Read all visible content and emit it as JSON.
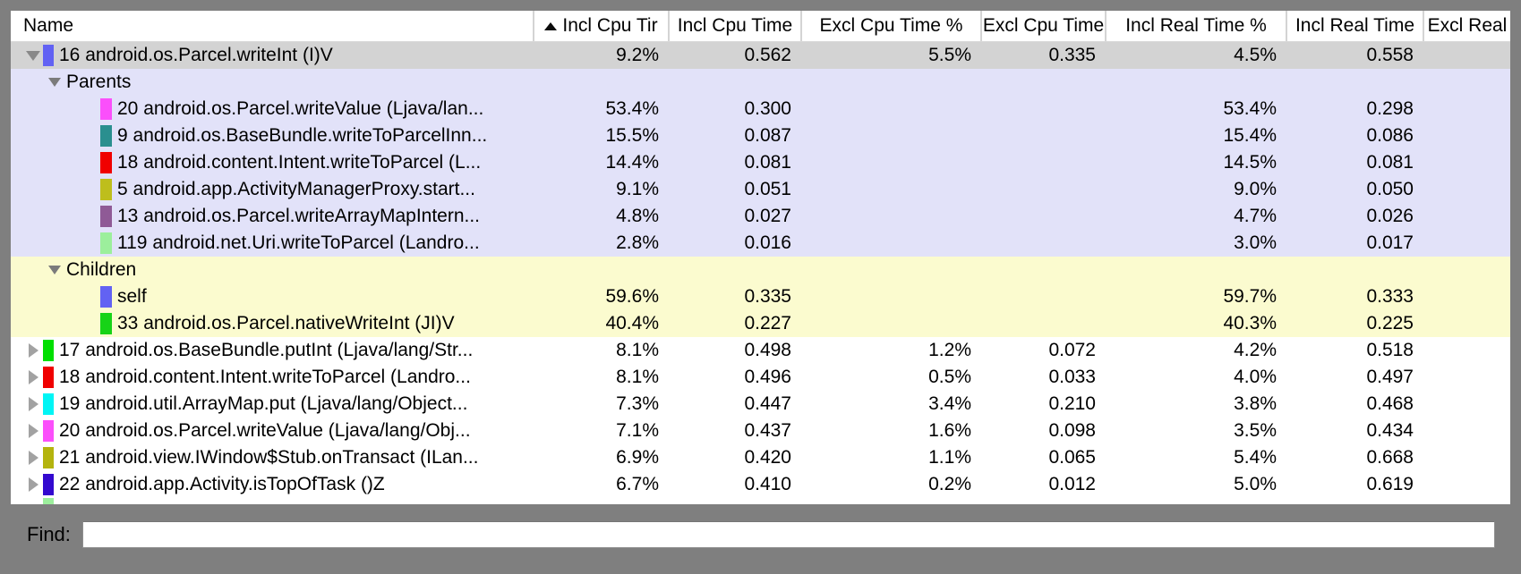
{
  "window": {
    "bg": "#7f7f7f"
  },
  "colors": {
    "selected_row": "#d3d3d3",
    "parents_section": "#e2e2f9",
    "children_section": "#fbfbcf",
    "row_default": "#ffffff"
  },
  "table": {
    "columns": [
      {
        "label": "Name",
        "align": "left"
      },
      {
        "label": "Incl Cpu Tir",
        "sorted": "asc"
      },
      {
        "label": "Incl Cpu Time"
      },
      {
        "label": "Excl Cpu Time %"
      },
      {
        "label": "Excl Cpu Time"
      },
      {
        "label": "Incl Real Time %"
      },
      {
        "label": "Incl Real Time"
      },
      {
        "label": "Excl Real"
      }
    ],
    "rows": [
      {
        "kind": "root",
        "section": "selected",
        "disclosure": "down",
        "swatch": "#6262f3",
        "name": "16 android.os.Parcel.writeInt (I)V",
        "values": [
          "9.2%",
          "0.562",
          "5.5%",
          "0.335",
          "4.5%",
          "0.558",
          ""
        ]
      },
      {
        "kind": "group",
        "section": "parents",
        "disclosure": "down",
        "swatch": null,
        "name": "Parents",
        "values": [
          "",
          "",
          "",
          "",
          "",
          "",
          ""
        ]
      },
      {
        "kind": "item",
        "section": "parents",
        "disclosure": null,
        "swatch": "#fb4ffb",
        "name": "20 android.os.Parcel.writeValue (Ljava/lan...",
        "values": [
          "53.4%",
          "0.300",
          "",
          "",
          "53.4%",
          "0.298",
          ""
        ]
      },
      {
        "kind": "item",
        "section": "parents",
        "disclosure": null,
        "swatch": "#2a8f8f",
        "name": "9 android.os.BaseBundle.writeToParcelInn...",
        "values": [
          "15.5%",
          "0.087",
          "",
          "",
          "15.4%",
          "0.086",
          ""
        ]
      },
      {
        "kind": "item",
        "section": "parents",
        "disclosure": null,
        "swatch": "#f00000",
        "name": "18 android.content.Intent.writeToParcel (L...",
        "values": [
          "14.4%",
          "0.081",
          "",
          "",
          "14.5%",
          "0.081",
          ""
        ]
      },
      {
        "kind": "item",
        "section": "parents",
        "disclosure": null,
        "swatch": "#bebe1c",
        "name": "5 android.app.ActivityManagerProxy.start...",
        "values": [
          "9.1%",
          "0.051",
          "",
          "",
          "9.0%",
          "0.050",
          ""
        ]
      },
      {
        "kind": "item",
        "section": "parents",
        "disclosure": null,
        "swatch": "#8f5a96",
        "name": "13 android.os.Parcel.writeArrayMapIntern...",
        "values": [
          "4.8%",
          "0.027",
          "",
          "",
          "4.7%",
          "0.026",
          ""
        ]
      },
      {
        "kind": "item",
        "section": "parents",
        "disclosure": null,
        "swatch": "#9cef9c",
        "name": "119 android.net.Uri.writeToParcel (Landro...",
        "values": [
          "2.8%",
          "0.016",
          "",
          "",
          "3.0%",
          "0.017",
          ""
        ]
      },
      {
        "kind": "group",
        "section": "children",
        "disclosure": "down",
        "swatch": null,
        "name": "Children",
        "values": [
          "",
          "",
          "",
          "",
          "",
          "",
          ""
        ]
      },
      {
        "kind": "item",
        "section": "children",
        "disclosure": null,
        "swatch": "#6262f3",
        "name": "self",
        "values": [
          "59.6%",
          "0.335",
          "",
          "",
          "59.7%",
          "0.333",
          ""
        ]
      },
      {
        "kind": "item",
        "section": "children",
        "disclosure": null,
        "swatch": "#17d317",
        "name": "33 android.os.Parcel.nativeWriteInt (JI)V",
        "values": [
          "40.4%",
          "0.227",
          "",
          "",
          "40.3%",
          "0.225",
          ""
        ]
      },
      {
        "kind": "root",
        "section": "none",
        "disclosure": "right",
        "swatch": "#00df00",
        "name": "17 android.os.BaseBundle.putInt (Ljava/lang/Str...",
        "values": [
          "8.1%",
          "0.498",
          "1.2%",
          "0.072",
          "4.2%",
          "0.518",
          ""
        ]
      },
      {
        "kind": "root",
        "section": "none",
        "disclosure": "right",
        "swatch": "#f00000",
        "name": "18 android.content.Intent.writeToParcel (Landro...",
        "values": [
          "8.1%",
          "0.496",
          "0.5%",
          "0.033",
          "4.0%",
          "0.497",
          ""
        ]
      },
      {
        "kind": "root",
        "section": "none",
        "disclosure": "right",
        "swatch": "#00f5f5",
        "name": "19 android.util.ArrayMap.put (Ljava/lang/Object...",
        "values": [
          "7.3%",
          "0.447",
          "3.4%",
          "0.210",
          "3.8%",
          "0.468",
          ""
        ]
      },
      {
        "kind": "root",
        "section": "none",
        "disclosure": "right",
        "swatch": "#fb4ffb",
        "name": "20 android.os.Parcel.writeValue (Ljava/lang/Obj...",
        "values": [
          "7.1%",
          "0.437",
          "1.6%",
          "0.098",
          "3.5%",
          "0.434",
          ""
        ]
      },
      {
        "kind": "root",
        "section": "none",
        "disclosure": "right",
        "swatch": "#b4b40e",
        "name": "21 android.view.IWindow$Stub.onTransact (ILan...",
        "values": [
          "6.9%",
          "0.420",
          "1.1%",
          "0.065",
          "5.4%",
          "0.668",
          ""
        ]
      },
      {
        "kind": "root",
        "section": "none",
        "disclosure": "right",
        "swatch": "#3309cf",
        "name": "22 android.app.Activity.isTopOfTask ()Z",
        "values": [
          "6.7%",
          "0.410",
          "0.2%",
          "0.012",
          "5.0%",
          "0.619",
          ""
        ]
      },
      {
        "kind": "sliver",
        "section": "none",
        "disclosure": null,
        "swatch": "#9cef9c",
        "name": "",
        "values": [
          "",
          "",
          "",
          "",
          "",
          "",
          ""
        ]
      }
    ]
  },
  "find": {
    "label": "Find:",
    "value": ""
  }
}
